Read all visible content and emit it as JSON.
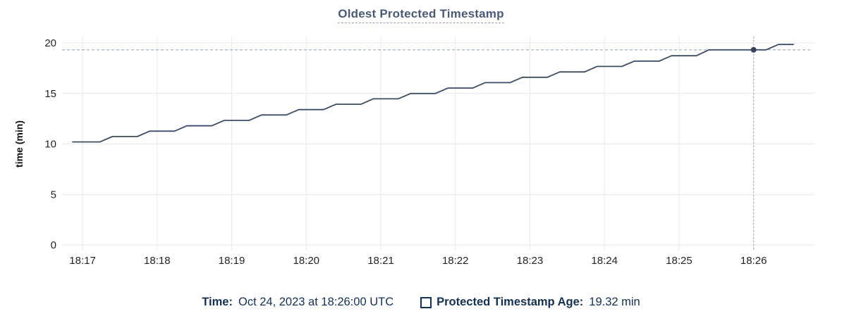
{
  "header": {
    "title": "Oldest Protected Timestamp"
  },
  "tooltip_legend": {
    "time_label": "Time:",
    "time_value": "Oct 24, 2023 at 18:26:00 UTC",
    "series_label": "Protected Timestamp Age:",
    "series_value": "19.32 min",
    "swatch_icon": "series-swatch"
  },
  "colors": {
    "background": "#ffffff",
    "title": "#4a5a75",
    "grid": "#e9e9e9",
    "axis_text": "#242424",
    "series_line": "#3c4b63",
    "hover_dot": "#36435a",
    "crosshair": "#9fb1c1",
    "legend_text": "#16304f"
  },
  "chart_data": {
    "type": "line",
    "title": "Oldest Protected Timestamp",
    "xlabel": "",
    "ylabel": "time (min)",
    "ylim": [
      0,
      20
    ],
    "yticks": [
      0,
      5,
      10,
      15,
      20
    ],
    "grid": true,
    "legend_position": "bottom",
    "x_unit": "seconds after 18:17:00 UTC, Oct 24 2023",
    "x_domain_seconds": [
      -16.5,
      589
    ],
    "xticks": [
      {
        "label": "18:17",
        "t": 0
      },
      {
        "label": "18:18",
        "t": 60
      },
      {
        "label": "18:19",
        "t": 120
      },
      {
        "label": "18:20",
        "t": 180
      },
      {
        "label": "18:21",
        "t": 240
      },
      {
        "label": "18:22",
        "t": 300
      },
      {
        "label": "18:23",
        "t": 360
      },
      {
        "label": "18:24",
        "t": 420
      },
      {
        "label": "18:25",
        "t": 480
      },
      {
        "label": "18:26",
        "t": 540
      }
    ],
    "series": [
      {
        "name": "Protected Timestamp Age",
        "color": "#3c4b63",
        "points": [
          [
            -8,
            10.2
          ],
          [
            14,
            10.2
          ],
          [
            24,
            10.73
          ],
          [
            44,
            10.73
          ],
          [
            54,
            11.27
          ],
          [
            74,
            11.27
          ],
          [
            84,
            11.8
          ],
          [
            104,
            11.8
          ],
          [
            114,
            12.33
          ],
          [
            134,
            12.33
          ],
          [
            144,
            12.87
          ],
          [
            164,
            12.87
          ],
          [
            174,
            13.4
          ],
          [
            194,
            13.4
          ],
          [
            204,
            13.93
          ],
          [
            224,
            13.93
          ],
          [
            234,
            14.47
          ],
          [
            254,
            14.47
          ],
          [
            264,
            15.0
          ],
          [
            284,
            15.0
          ],
          [
            294,
            15.53
          ],
          [
            314,
            15.53
          ],
          [
            324,
            16.07
          ],
          [
            344,
            16.07
          ],
          [
            354,
            16.6
          ],
          [
            374,
            16.6
          ],
          [
            384,
            17.13
          ],
          [
            404,
            17.13
          ],
          [
            414,
            17.67
          ],
          [
            434,
            17.67
          ],
          [
            444,
            18.2
          ],
          [
            464,
            18.2
          ],
          [
            474,
            18.73
          ],
          [
            494,
            18.73
          ],
          [
            504,
            19.32
          ],
          [
            550,
            19.32
          ],
          [
            560,
            19.85
          ],
          [
            572,
            19.85
          ]
        ]
      }
    ],
    "crosshair": {
      "t": 540,
      "value": 19.32,
      "time_text": "Oct 24, 2023 at 18:26:00 UTC"
    }
  }
}
